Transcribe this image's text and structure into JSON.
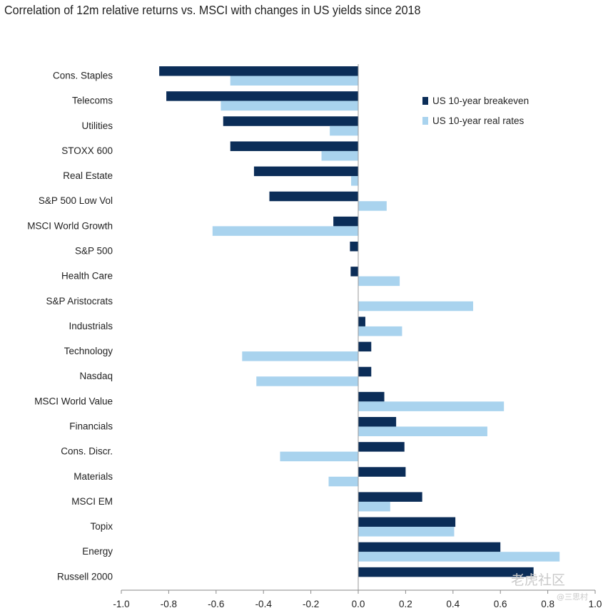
{
  "chart_data": {
    "type": "bar",
    "orientation": "horizontal",
    "title": "Correlation of 12m relative returns vs. MSCI with changes in US yields since 2018",
    "categories": [
      "Cons. Staples",
      "Telecoms",
      "Utilities",
      "STOXX 600",
      "Real Estate",
      "S&P 500 Low Vol",
      "MSCI World Growth",
      "S&P 500",
      "Health Care",
      "S&P Aristocrats",
      "Industrials",
      "Technology",
      "Nasdaq",
      "MSCI World Value",
      "Financials",
      "Cons. Discr.",
      "Materials",
      "MSCI EM",
      "Topix",
      "Energy",
      "Russell 2000"
    ],
    "series": [
      {
        "name": "US 10-year breakeven",
        "color": "#0b2d58",
        "values": [
          -0.84,
          -0.81,
          -0.57,
          -0.54,
          -0.44,
          -0.375,
          -0.105,
          -0.035,
          -0.032,
          0.0,
          0.03,
          0.055,
          0.055,
          0.11,
          0.16,
          0.195,
          0.2,
          0.27,
          0.41,
          0.6,
          0.74
        ]
      },
      {
        "name": "US 10-year real rates",
        "color": "#a9d3ee",
        "values": [
          -0.54,
          -0.58,
          -0.12,
          -0.155,
          -0.03,
          0.12,
          -0.615,
          0.0,
          0.175,
          0.485,
          0.185,
          -0.49,
          -0.43,
          0.615,
          0.545,
          -0.33,
          -0.125,
          0.135,
          0.405,
          0.85,
          0.0
        ]
      }
    ],
    "xlim": [
      -1.0,
      1.0
    ],
    "xticks": [
      "-1.0",
      "-0.8",
      "-0.6",
      "-0.4",
      "-0.2",
      "0.0",
      "0.2",
      "0.4",
      "0.6",
      "0.8",
      "1.0"
    ],
    "xlabel": "",
    "ylabel": "",
    "grid": false,
    "legend_position": "top-right"
  },
  "watermark": {
    "main": "老虎社区",
    "sub": "@三思村"
  }
}
